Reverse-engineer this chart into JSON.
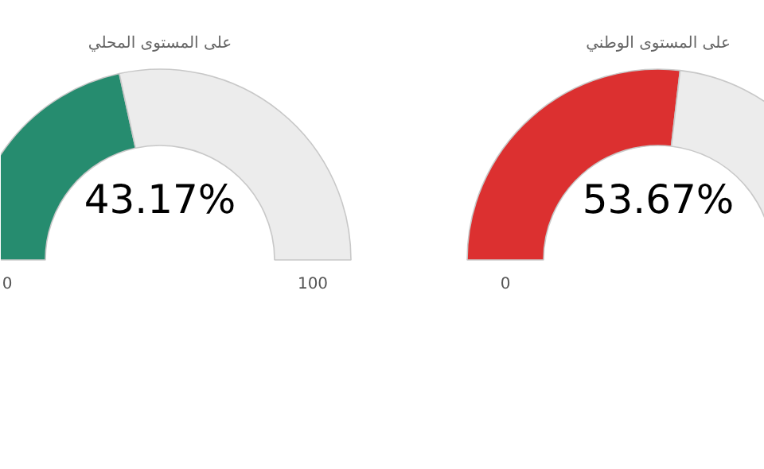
{
  "chart_data": [
    {
      "type": "donut",
      "title": "على المستوى المحلي",
      "categories": [
        null,
        null
      ],
      "values": [
        43.17,
        56.83
      ],
      "colors": [
        "#268c6f",
        "#ececec"
      ],
      "annotations": [
        "43.17%",
        "0",
        "100"
      ]
    },
    {
      "type": "donut",
      "title": "على المستوى الوطني",
      "categories": [
        null,
        null
      ],
      "values": [
        53.67,
        46.33
      ],
      "colors": [
        "#dc3030",
        "#ececec"
      ],
      "annotations": [
        "53.67%",
        "0"
      ]
    }
  ]
}
